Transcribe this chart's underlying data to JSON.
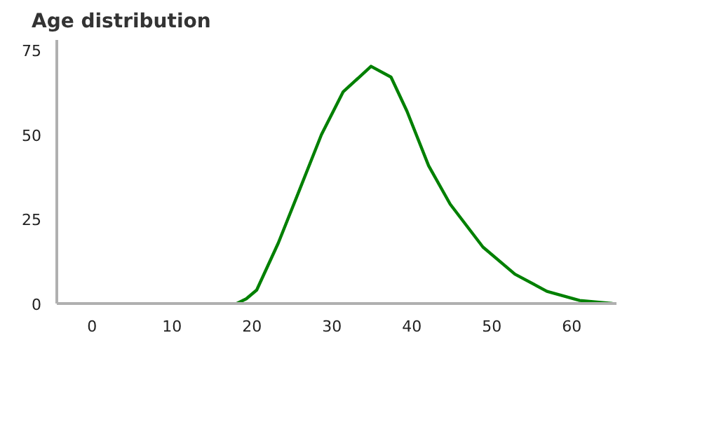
{
  "chart_data": {
    "type": "line",
    "title": "Age distribution",
    "x": [
      18.1,
      19.3,
      20.6,
      23.3,
      26.0,
      28.7,
      31.4,
      34.9,
      37.4,
      39.4,
      42.1,
      44.8,
      48.9,
      52.9,
      56.9,
      61.0,
      65.1
    ],
    "series": [
      {
        "color": "#008000",
        "values": [
          0,
          1.4,
          4,
          17.9,
          33.9,
          50,
          62.6,
          70.2,
          67,
          56.9,
          40.8,
          29.4,
          16.7,
          8.7,
          3.6,
          0.9,
          0
        ]
      }
    ],
    "xlim": [
      -4.4,
      65.6
    ],
    "ylim": [
      0,
      78
    ],
    "xticks": [
      0,
      10,
      20,
      30,
      40,
      50,
      60
    ],
    "yticks": [
      0,
      25,
      50,
      75
    ],
    "grid": false,
    "marker": "none",
    "line_style": "solid"
  }
}
